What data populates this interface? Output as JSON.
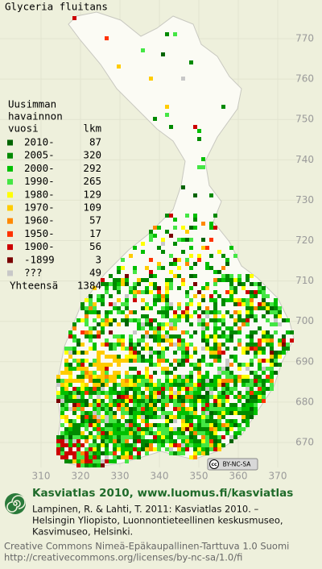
{
  "title": "Glyceria fluitans",
  "legend": {
    "heading": [
      "Uusimman",
      "havainnon",
      "vuosi"
    ],
    "count_heading": "lkm",
    "items": [
      {
        "label": "2010-",
        "count": 87,
        "color": "#006400"
      },
      {
        "label": "2005-",
        "count": 320,
        "color": "#008a00"
      },
      {
        "label": "2000-",
        "count": 292,
        "color": "#00c000"
      },
      {
        "label": "1990-",
        "count": 265,
        "color": "#44e644"
      },
      {
        "label": "1980-",
        "count": 129,
        "color": "#ffff00"
      },
      {
        "label": "1970-",
        "count": 109,
        "color": "#ffcc00"
      },
      {
        "label": "1960-",
        "count": 57,
        "color": "#ff8800"
      },
      {
        "label": "1950-",
        "count": 17,
        "color": "#ff3300"
      },
      {
        "label": "1900-",
        "count": 56,
        "color": "#cc0000"
      },
      {
        "label": "-1899",
        "count": 3,
        "color": "#7a0000"
      },
      {
        "label": "???",
        "count": 49,
        "color": "#c8c8c8"
      }
    ],
    "total_label": "Yhteensä",
    "total": 1384
  },
  "axes": {
    "xticks": [
      310,
      320,
      330,
      340,
      350,
      360,
      370
    ],
    "yticks": [
      670,
      680,
      690,
      700,
      710,
      720,
      730,
      740,
      750,
      760,
      770
    ]
  },
  "license_badge": "BY-NC-SA",
  "footer": {
    "site": "Kasviatlas 2010, www.luomus.fi/kasviatlas",
    "citation": [
      "Lampinen, R. & Lahti, T. 2011: Kasviatlas 2010. –",
      "Helsingin Yliopisto, Luonnontieteellinen keskusmuseo,",
      "Kasvimuseo, Helsinki."
    ],
    "license": [
      "Creative Commons Nimeä-Epäkaupallinen-Tarttuva 1.0 Suomi",
      "http://creativecommons.org/licenses/by-nc-sa/1.0/fi"
    ]
  }
}
